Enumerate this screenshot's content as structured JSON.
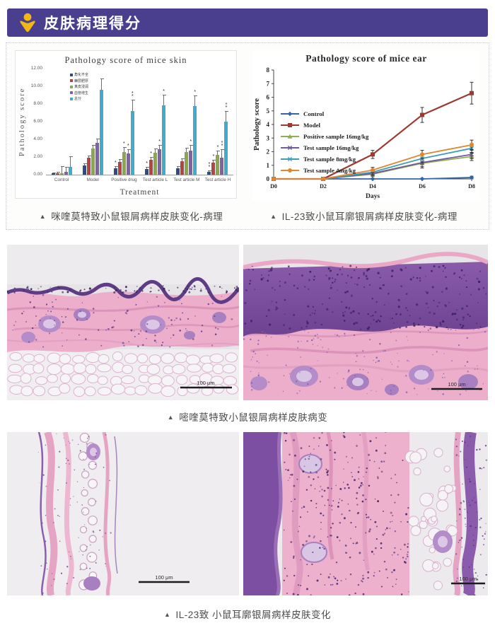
{
  "header": {
    "title": "皮肤病理得分",
    "bar_color": "#4a3e8f",
    "icon": "person-chevron-icon",
    "icon_color": "#f2b714"
  },
  "charts_section": {
    "left_caption": {
      "marker": "▲",
      "text": "咪喹莫特致小鼠银屑病样皮肤变化-病理"
    },
    "right_caption": {
      "marker": "▲",
      "text": "IL-23致小鼠耳廓银屑病样皮肤变化-病理"
    }
  },
  "chart_data": [
    {
      "id": "skin-bar-chart",
      "type": "bar",
      "title": "Pathology score of mice skin",
      "xlabel": "Treatment",
      "ylabel": "Pathology  score",
      "ylim": [
        0,
        12
      ],
      "yticks": [
        "0.00",
        "2.00",
        "4.00",
        "6.00",
        "8.00",
        "10.00",
        "12.00"
      ],
      "categories": [
        "Control",
        "Model",
        "Positive drug",
        "Test article L",
        "Test article M",
        "Test article H"
      ],
      "grid": false,
      "legend_position": "inside-top-left",
      "series": [
        {
          "name": "角化不全",
          "color": "#2f4d80",
          "values": [
            0.15,
            1.05,
            0.75,
            0.65,
            0.75,
            0.35
          ],
          "errors": [
            0.1,
            0.2,
            0.2,
            0.2,
            0.2,
            0.15
          ],
          "stars": [
            0,
            0,
            1,
            1,
            0,
            2
          ]
        },
        {
          "name": "棘层肥厚",
          "color": "#b04543",
          "values": [
            0.2,
            1.9,
            1.45,
            1.7,
            1.55,
            1.35
          ],
          "errors": [
            0.15,
            0.3,
            0.3,
            0.3,
            0.3,
            0.3
          ],
          "stars": [
            0,
            0,
            0,
            1,
            0,
            1
          ]
        },
        {
          "name": "真皮浸润",
          "color": "#8ca54f",
          "values": [
            0.15,
            3.0,
            2.6,
            2.45,
            2.55,
            2.25
          ],
          "errors": [
            0.85,
            0.4,
            0.5,
            0.5,
            0.5,
            0.5
          ],
          "stars": [
            0,
            0,
            1,
            0,
            0,
            1
          ]
        },
        {
          "name": "血管增生",
          "color": "#7e62a1",
          "values": [
            0.3,
            3.6,
            2.4,
            2.9,
            2.75,
            1.95
          ],
          "errors": [
            0.6,
            0.45,
            0.5,
            0.5,
            0.6,
            0.9
          ],
          "stars": [
            0,
            0,
            1,
            1,
            1,
            2
          ]
        },
        {
          "name": "总分",
          "color": "#45a9c8",
          "values": [
            0.9,
            9.6,
            7.2,
            7.85,
            7.75,
            6.0
          ],
          "errors": [
            1.2,
            1.3,
            1.3,
            1.2,
            1.2,
            1.2
          ],
          "stars": [
            0,
            0,
            2,
            1,
            1,
            2
          ]
        }
      ]
    },
    {
      "id": "ear-line-chart",
      "type": "line",
      "title": "Pathology score of mice ear",
      "xlabel": "Days",
      "ylabel": "Pathology score",
      "ylim": [
        0,
        8
      ],
      "yticks": [
        0,
        1,
        2,
        3,
        4,
        5,
        6,
        7,
        8
      ],
      "x": [
        "D0",
        "D2",
        "D4",
        "D6",
        "D8"
      ],
      "grid": false,
      "legend_position": "inside-left",
      "series": [
        {
          "name": "Control",
          "color": "#3465a8",
          "marker": "diamond",
          "values": [
            0,
            0,
            0,
            0,
            0.1
          ],
          "errors": [
            0,
            0,
            0.05,
            0.05,
            0.1
          ]
        },
        {
          "name": "Model",
          "color": "#9c3a32",
          "marker": "square",
          "values": [
            0,
            0,
            1.8,
            4.7,
            6.3
          ],
          "errors": [
            0,
            0,
            0.3,
            0.55,
            0.8
          ]
        },
        {
          "name": "Positive sample 16mg/kg",
          "color": "#8fae4e",
          "marker": "triangle",
          "values": [
            0,
            0,
            0.35,
            1.15,
            1.65
          ],
          "errors": [
            0,
            0,
            0.15,
            0.35,
            0.3
          ]
        },
        {
          "name": "Test sample 16mg/kg",
          "color": "#6f5a9c",
          "marker": "x",
          "values": [
            0,
            0,
            0.4,
            1.2,
            1.8
          ],
          "errors": [
            0,
            0,
            0.2,
            0.3,
            0.3
          ]
        },
        {
          "name": "Test sample 8mg/kg",
          "color": "#3d9fb5",
          "marker": "x",
          "values": [
            0,
            0,
            0.5,
            1.5,
            2.25
          ],
          "errors": [
            0,
            0,
            0.2,
            0.3,
            0.35
          ]
        },
        {
          "name": "Test sample 4mg/kg",
          "color": "#e0862f",
          "marker": "circle",
          "values": [
            0,
            0,
            0.65,
            1.8,
            2.5
          ],
          "errors": [
            0,
            0,
            0.2,
            0.3,
            0.35
          ]
        }
      ]
    }
  ],
  "histology": {
    "scale_bar_label": "100 μm",
    "mid_caption": {
      "marker": "▲",
      "text": "嘧喹莫特致小鼠银屑病样皮肤病变"
    },
    "bottom_caption": {
      "marker": "▲",
      "text": "IL-23致 小鼠耳廓银屑病样皮肤变化"
    }
  }
}
